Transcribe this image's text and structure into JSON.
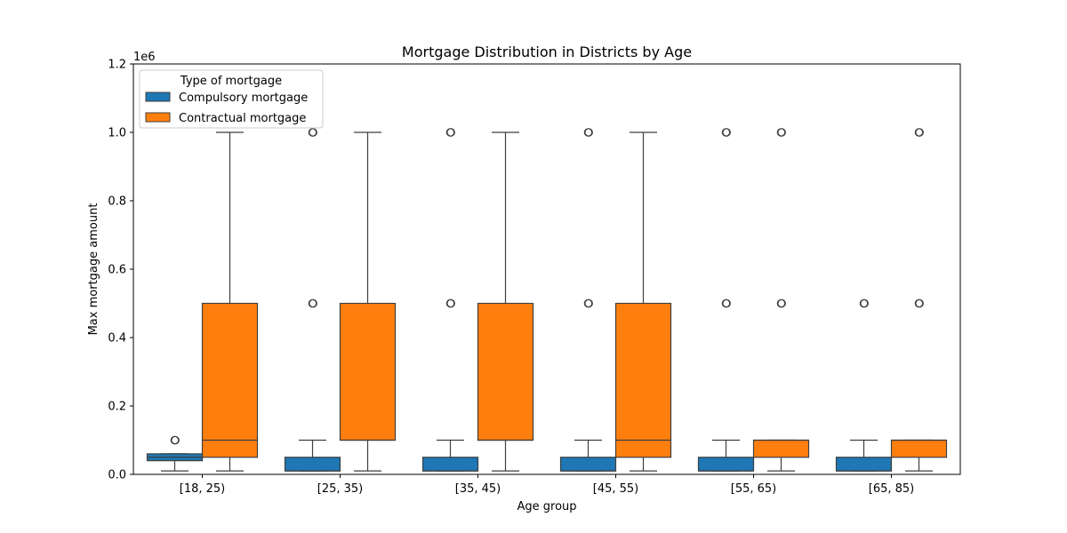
{
  "chart_data": {
    "type": "box",
    "title": "Mortgage Distribution in Districts by Age",
    "xlabel": "Age group",
    "ylabel": "Max mortgage amount",
    "y_offset_label": "1e6",
    "ylim": [
      0,
      1200000
    ],
    "y_ticks": [
      0,
      200000,
      400000,
      600000,
      800000,
      1000000,
      1200000
    ],
    "y_tick_labels": [
      "0.0",
      "0.2",
      "0.4",
      "0.6",
      "0.8",
      "1.0",
      "1.2"
    ],
    "categories": [
      "[18, 25)",
      "[25, 35)",
      "[35, 45)",
      "[45, 55)",
      "[55, 65)",
      "[65, 85)"
    ],
    "legend": {
      "title": "Type of mortgage",
      "placement": "upper-left"
    },
    "series": [
      {
        "name": "Compulsory mortgage",
        "color": "#1f77b4",
        "boxes": [
          {
            "whisker_low": 10000,
            "q1": 40000,
            "median": 50000,
            "q3": 60000,
            "whisker_high": 60000,
            "outliers": [
              100000
            ]
          },
          {
            "whisker_low": 10000,
            "q1": 10000,
            "median": 10000,
            "q3": 50000,
            "whisker_high": 100000,
            "outliers": [
              500000,
              1000000
            ]
          },
          {
            "whisker_low": 10000,
            "q1": 10000,
            "median": 10000,
            "q3": 50000,
            "whisker_high": 100000,
            "outliers": [
              500000,
              1000000
            ]
          },
          {
            "whisker_low": 10000,
            "q1": 10000,
            "median": 10000,
            "q3": 50000,
            "whisker_high": 100000,
            "outliers": [
              500000,
              1000000
            ]
          },
          {
            "whisker_low": 10000,
            "q1": 10000,
            "median": 10000,
            "q3": 50000,
            "whisker_high": 100000,
            "outliers": [
              500000,
              1000000
            ]
          },
          {
            "whisker_low": 10000,
            "q1": 10000,
            "median": 10000,
            "q3": 50000,
            "whisker_high": 100000,
            "outliers": [
              500000
            ]
          }
        ]
      },
      {
        "name": "Contractual mortgage",
        "color": "#ff7f0e",
        "boxes": [
          {
            "whisker_low": 10000,
            "q1": 50000,
            "median": 100000,
            "q3": 500000,
            "whisker_high": 1000000,
            "outliers": []
          },
          {
            "whisker_low": 10000,
            "q1": 100000,
            "median": 100000,
            "q3": 500000,
            "whisker_high": 1000000,
            "outliers": []
          },
          {
            "whisker_low": 10000,
            "q1": 100000,
            "median": 100000,
            "q3": 500000,
            "whisker_high": 1000000,
            "outliers": []
          },
          {
            "whisker_low": 10000,
            "q1": 50000,
            "median": 100000,
            "q3": 500000,
            "whisker_high": 1000000,
            "outliers": []
          },
          {
            "whisker_low": 10000,
            "q1": 50000,
            "median": 100000,
            "q3": 100000,
            "whisker_high": 100000,
            "outliers": [
              500000,
              1000000
            ]
          },
          {
            "whisker_low": 10000,
            "q1": 50000,
            "median": 100000,
            "q3": 100000,
            "whisker_high": 100000,
            "outliers": [
              500000,
              1000000
            ]
          }
        ]
      }
    ]
  }
}
